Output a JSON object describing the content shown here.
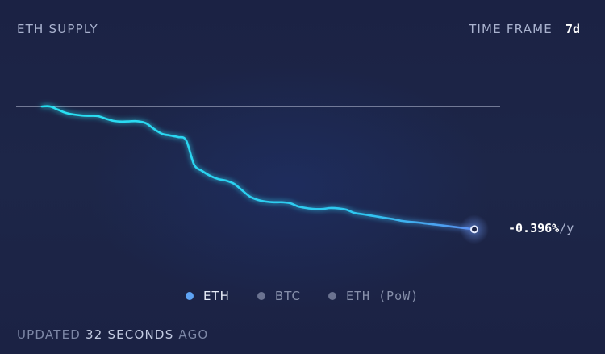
{
  "header": {
    "title": "ETH SUPPLY",
    "time_frame_label": "TIME FRAME",
    "time_frame_value": "7d"
  },
  "rate": {
    "value": "-0.396%",
    "unit": "/y"
  },
  "legend": [
    {
      "label": "ETH",
      "color": "#5ea3f3",
      "active": true
    },
    {
      "label": "BTC",
      "color": "#6b7391",
      "active": false
    },
    {
      "label": "ETH (PoW)",
      "color": "#6b7391",
      "active": false
    }
  ],
  "footer": {
    "prefix": "UPDATED",
    "number": "32",
    "middle": "SECONDS",
    "suffix": "AGO"
  },
  "colors": {
    "line_start": "#28e2f2",
    "line_end": "#5a8ef0",
    "baseline": "#c7cee4"
  },
  "chart_data": {
    "type": "line",
    "title": "ETH SUPPLY",
    "xlabel": "",
    "ylabel": "",
    "grid": false,
    "baseline": 0,
    "ylim": [
      -0.45,
      0.05
    ],
    "series": [
      {
        "name": "ETH",
        "x": [
          0,
          0.5,
          1,
          1.5,
          2,
          2.5,
          3,
          3.5,
          4,
          4.5,
          5,
          5.5,
          6,
          6.5,
          7,
          7.5,
          8,
          8.5,
          9,
          9.5,
          10,
          10.5,
          11,
          11.5,
          12,
          12.5,
          13,
          13.5,
          14,
          14.5,
          15,
          15.5,
          16,
          16.5,
          17,
          17.5,
          18,
          18.5,
          19,
          19.5,
          20,
          20.5,
          21,
          21.5,
          22,
          22.5,
          23,
          23.5,
          24,
          24.5,
          25,
          25.5,
          26,
          26.5,
          27
        ],
        "values": [
          0,
          0,
          -0.01,
          -0.02,
          -0.025,
          -0.028,
          -0.029,
          -0.03,
          -0.038,
          -0.045,
          -0.047,
          -0.046,
          -0.046,
          -0.052,
          -0.07,
          -0.085,
          -0.09,
          -0.095,
          -0.105,
          -0.18,
          -0.2,
          -0.215,
          -0.225,
          -0.23,
          -0.24,
          -0.26,
          -0.28,
          -0.29,
          -0.295,
          -0.297,
          -0.297,
          -0.3,
          -0.31,
          -0.315,
          -0.318,
          -0.318,
          -0.315,
          -0.316,
          -0.32,
          -0.33,
          -0.334,
          -0.338,
          -0.342,
          -0.346,
          -0.35,
          -0.355,
          -0.358,
          -0.36,
          -0.363,
          -0.366,
          -0.369,
          -0.372,
          -0.375,
          -0.378,
          -0.381
        ]
      }
    ]
  }
}
